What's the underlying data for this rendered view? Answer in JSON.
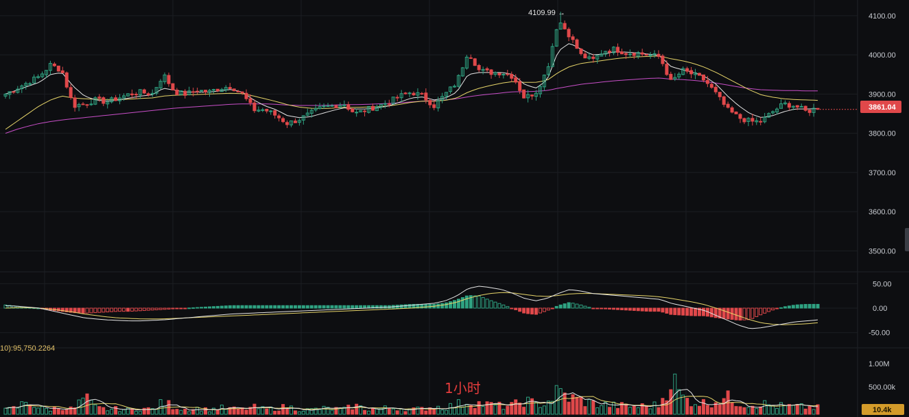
{
  "timeframe_label": "1小时",
  "high_marker": {
    "label": "4109.99 →"
  },
  "last_price": {
    "label": "3861.04",
    "color": "#e0484a"
  },
  "volume_last": {
    "label": "10.4k",
    "color": "#d49b2a"
  },
  "macd_label": "10):95,750.2264",
  "colors": {
    "up": "#2fa382",
    "down": "#e0484a",
    "ma_fast": "#e6e6e6",
    "ma_mid": "#e8d66a",
    "ma_slow": "#c94fc9",
    "grid": "#1c1e23"
  },
  "price_axis": {
    "ticks": [
      "4100.00",
      "4000.00",
      "3900.00",
      "3800.00",
      "3700.00",
      "3600.00",
      "3500.00"
    ]
  },
  "macd_axis": {
    "ticks": [
      "50.00",
      "0.00",
      "-50.00"
    ]
  },
  "volume_axis": {
    "ticks": [
      "1.00M",
      "500.00k"
    ]
  },
  "chart_data": {
    "type": "candlestick",
    "price_range": [
      3450,
      4140
    ],
    "high": 4109.99,
    "last": 3861.04,
    "price_path": [
      3900,
      3915,
      3930,
      3945,
      3975,
      3960,
      3870,
      3875,
      3885,
      3880,
      3890,
      3900,
      3905,
      3900,
      3950,
      3905,
      3900,
      3910,
      3905,
      3915,
      3920,
      3900,
      3860,
      3860,
      3845,
      3825,
      3835,
      3850,
      3865,
      3870,
      3875,
      3850,
      3860,
      3870,
      3880,
      3895,
      3905,
      3895,
      3870,
      3900,
      3930,
      4010,
      3960,
      3955,
      3955,
      3945,
      3890,
      3905,
      3960,
      4090,
      4050,
      4000,
      3985,
      4010,
      4015,
      4005,
      4005,
      4000,
      3995,
      3930,
      3960,
      3950,
      3935,
      3900,
      3860,
      3840,
      3830,
      3830,
      3855,
      3875,
      3870,
      3855,
      3865
    ],
    "ma_fast_path": [
      3900,
      3910,
      3920,
      3930,
      3950,
      3955,
      3920,
      3895,
      3885,
      3882,
      3885,
      3890,
      3895,
      3898,
      3915,
      3910,
      3905,
      3905,
      3905,
      3908,
      3912,
      3905,
      3885,
      3870,
      3860,
      3845,
      3840,
      3842,
      3850,
      3858,
      3865,
      3862,
      3862,
      3865,
      3870,
      3880,
      3890,
      3893,
      3885,
      3890,
      3905,
      3950,
      3955,
      3955,
      3955,
      3950,
      3925,
      3915,
      3935,
      4010,
      4030,
      4015,
      4000,
      4002,
      4008,
      4007,
      4005,
      4002,
      3998,
      3970,
      3962,
      3955,
      3945,
      3925,
      3895,
      3870,
      3850,
      3840,
      3845,
      3855,
      3862,
      3862,
      3863
    ],
    "ma_mid_path": [
      3810,
      3830,
      3850,
      3870,
      3885,
      3895,
      3890,
      3888,
      3887,
      3886,
      3886,
      3887,
      3889,
      3890,
      3895,
      3897,
      3898,
      3899,
      3900,
      3901,
      3902,
      3901,
      3895,
      3888,
      3881,
      3873,
      3867,
      3864,
      3863,
      3864,
      3866,
      3866,
      3867,
      3868,
      3870,
      3874,
      3879,
      3882,
      3882,
      3884,
      3890,
      3905,
      3915,
      3922,
      3928,
      3932,
      3930,
      3930,
      3935,
      3955,
      3970,
      3978,
      3982,
      3986,
      3990,
      3993,
      3995,
      3996,
      3997,
      3990,
      3985,
      3978,
      3968,
      3955,
      3940,
      3925,
      3910,
      3898,
      3892,
      3888,
      3886,
      3885,
      3884
    ],
    "ma_slow_path": [
      3800,
      3810,
      3818,
      3825,
      3830,
      3834,
      3837,
      3840,
      3843,
      3846,
      3849,
      3852,
      3855,
      3858,
      3861,
      3864,
      3866,
      3868,
      3870,
      3872,
      3874,
      3875,
      3875,
      3875,
      3874,
      3872,
      3871,
      3871,
      3871,
      3872,
      3873,
      3873,
      3874,
      3875,
      3876,
      3878,
      3880,
      3882,
      3883,
      3885,
      3888,
      3893,
      3897,
      3900,
      3903,
      3906,
      3906,
      3907,
      3909,
      3915,
      3920,
      3925,
      3928,
      3931,
      3934,
      3936,
      3938,
      3940,
      3941,
      3938,
      3937,
      3935,
      3932,
      3928,
      3923,
      3918,
      3914,
      3911,
      3910,
      3909,
      3909,
      3908,
      3908
    ],
    "macd_range": [
      -70,
      70
    ],
    "macd_dif_path": [
      5,
      4,
      2,
      0,
      -5,
      -10,
      -15,
      -20,
      -22,
      -24,
      -25,
      -26,
      -26,
      -25,
      -24,
      -22,
      -20,
      -18,
      -16,
      -14,
      -12,
      -11,
      -10,
      -9,
      -8,
      -7,
      -6,
      -5,
      -4,
      -3,
      -2,
      -1,
      0,
      1,
      2,
      4,
      6,
      8,
      10,
      15,
      25,
      40,
      45,
      42,
      38,
      30,
      20,
      15,
      20,
      30,
      38,
      35,
      30,
      28,
      26,
      24,
      22,
      20,
      18,
      10,
      5,
      0,
      -5,
      -15,
      -25,
      -35,
      -42,
      -40,
      -36,
      -32,
      -28,
      -26,
      -24
    ],
    "macd_dea_path": [
      0,
      1,
      1,
      0,
      -2,
      -5,
      -8,
      -12,
      -15,
      -18,
      -20,
      -21,
      -22,
      -22,
      -22,
      -21,
      -20,
      -19,
      -18,
      -17,
      -16,
      -15,
      -14,
      -13,
      -12,
      -11,
      -10,
      -9,
      -8,
      -7,
      -6,
      -5,
      -4,
      -3,
      -2,
      -1,
      0,
      2,
      4,
      7,
      12,
      20,
      26,
      30,
      32,
      31,
      28,
      25,
      24,
      26,
      29,
      30,
      30,
      29,
      28,
      27,
      26,
      25,
      23,
      20,
      16,
      12,
      7,
      0,
      -8,
      -16,
      -24,
      -30,
      -33,
      -34,
      -33,
      -32,
      -30
    ],
    "volume_range": [
      0,
      1150000
    ],
    "volume_path": [
      80,
      120,
      260,
      110,
      90,
      140,
      90,
      310,
      120,
      90,
      100,
      80,
      110,
      90,
      220,
      140,
      90,
      110,
      80,
      120,
      100,
      90,
      130,
      90,
      110,
      140,
      90,
      80,
      110,
      100,
      90,
      160,
      90,
      100,
      120,
      110,
      90,
      100,
      140,
      130,
      180,
      240,
      200,
      170,
      150,
      160,
      260,
      180,
      220,
      420,
      300,
      260,
      200,
      180,
      160,
      150,
      140,
      160,
      170,
      700,
      300,
      240,
      200,
      260,
      300,
      220,
      180,
      200,
      160,
      150,
      140,
      130,
      120
    ]
  }
}
